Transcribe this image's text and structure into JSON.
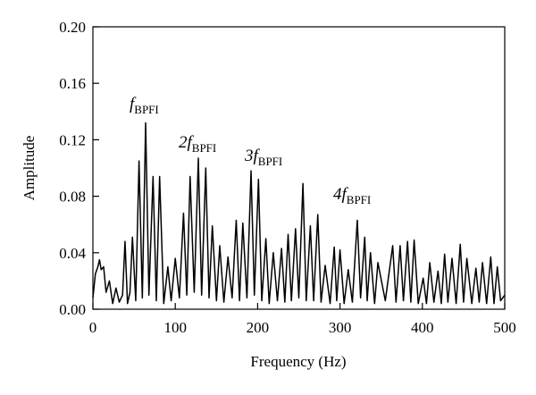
{
  "chart_data": {
    "type": "line",
    "xlabel": "Frequency (Hz)",
    "ylabel": "Amplitude",
    "xlim": [
      0,
      500
    ],
    "xticks": [
      0,
      100,
      200,
      300,
      400,
      500
    ],
    "ylim": [
      0,
      0.2
    ],
    "yticks": [
      {
        "value": 0,
        "label": "0.00"
      },
      {
        "value": 0.04,
        "label": "0.04"
      },
      {
        "value": 0.08,
        "label": "0.08"
      },
      {
        "value": 0.12,
        "label": "0.12"
      },
      {
        "value": 0.16,
        "label": "0.16"
      },
      {
        "value": 0.2,
        "label": "0.20"
      }
    ],
    "color": "#000000",
    "annotations": [
      {
        "text": "f",
        "sub": "BPFI"
      },
      {
        "text": "2f",
        "sub": "BPFI"
      },
      {
        "text": "3f",
        "sub": "BPFI"
      },
      {
        "text": "4f",
        "sub": "BPFI"
      }
    ],
    "x": [
      0,
      3,
      6,
      8,
      10,
      13,
      16,
      20,
      24,
      28,
      32,
      36,
      39,
      42,
      45,
      48,
      52,
      56,
      60,
      64,
      68,
      73,
      77,
      81,
      86,
      91,
      95,
      100,
      105,
      110,
      114,
      118,
      123,
      128,
      132,
      137,
      141,
      145,
      150,
      154,
      159,
      164,
      169,
      174,
      178,
      182,
      187,
      192,
      196,
      201,
      205,
      210,
      214,
      219,
      224,
      229,
      233,
      237,
      241,
      246,
      250,
      255,
      259,
      264,
      268,
      273,
      277,
      282,
      288,
      293,
      296,
      300,
      305,
      310,
      315,
      321,
      325,
      330,
      333,
      337,
      342,
      346,
      355,
      364,
      368,
      373,
      377,
      382,
      386,
      390,
      395,
      401,
      405,
      409,
      414,
      419,
      423,
      427,
      431,
      436,
      441,
      446,
      450,
      454,
      460,
      465,
      469,
      473,
      478,
      483,
      487,
      491,
      495,
      500
    ],
    "values": [
      0.008,
      0.025,
      0.03,
      0.035,
      0.028,
      0.03,
      0.012,
      0.02,
      0.004,
      0.015,
      0.005,
      0.01,
      0.048,
      0.004,
      0.012,
      0.051,
      0.006,
      0.105,
      0.008,
      0.132,
      0.01,
      0.094,
      0.006,
      0.094,
      0.004,
      0.03,
      0.006,
      0.036,
      0.008,
      0.068,
      0.01,
      0.094,
      0.012,
      0.107,
      0.01,
      0.1,
      0.008,
      0.059,
      0.006,
      0.045,
      0.005,
      0.037,
      0.008,
      0.063,
      0.006,
      0.061,
      0.008,
      0.098,
      0.01,
      0.092,
      0.006,
      0.05,
      0.004,
      0.04,
      0.006,
      0.043,
      0.005,
      0.053,
      0.006,
      0.057,
      0.008,
      0.089,
      0.006,
      0.059,
      0.006,
      0.067,
      0.005,
      0.031,
      0.004,
      0.044,
      0.006,
      0.042,
      0.004,
      0.028,
      0.005,
      0.063,
      0.008,
      0.051,
      0.006,
      0.04,
      0.004,
      0.033,
      0.006,
      0.045,
      0.005,
      0.045,
      0.006,
      0.048,
      0.005,
      0.049,
      0.004,
      0.022,
      0.004,
      0.033,
      0.005,
      0.027,
      0.004,
      0.039,
      0.005,
      0.036,
      0.004,
      0.046,
      0.005,
      0.036,
      0.004,
      0.029,
      0.005,
      0.033,
      0.004,
      0.037,
      0.004,
      0.03,
      0.006,
      0.01
    ]
  }
}
